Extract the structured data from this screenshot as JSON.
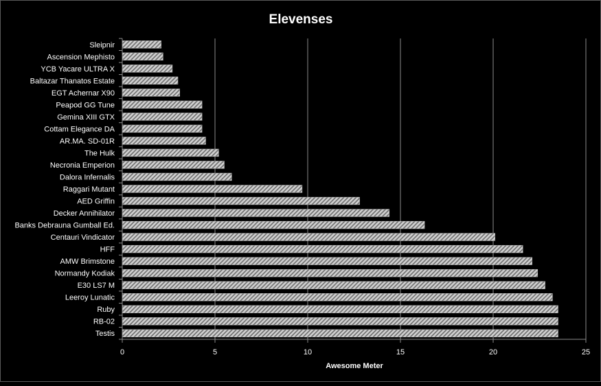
{
  "chart_data": {
    "type": "bar",
    "orientation": "horizontal",
    "title": "Elevenses",
    "xlabel": "Awesome Meter",
    "ylabel": "",
    "xlim": [
      0,
      25
    ],
    "xticks": [
      0,
      5,
      10,
      15,
      20,
      25
    ],
    "grid": true,
    "legend": "none",
    "categories": [
      "Sleipnir",
      "Ascension Mephisto",
      "YCB Yacare ULTRA X",
      "Baltazar Thanatos Estate",
      "EGT Achernar X90",
      "Peapod GG Tune",
      "Gemina XIII GTX",
      "Cottam Elegance DA",
      "AR.MA. SD-01R",
      "The Hulk",
      "Necronia Emperion",
      "Dalora Infernalis",
      "Raggari Mutant",
      "AED Griffin",
      "Decker Annihilator",
      "Banks Debrauna Gumball Ed.",
      "Centauri Vindicator",
      "HFF",
      "AMW Brimstone",
      "Normandy Kodiak",
      "E30 LS7 M",
      "Leeroy Lunatic",
      "Ruby",
      "RB-02",
      "Testis"
    ],
    "values": [
      2.1,
      2.2,
      2.7,
      3.0,
      3.1,
      4.3,
      4.3,
      4.3,
      4.5,
      5.2,
      5.5,
      5.9,
      9.7,
      12.8,
      14.4,
      16.3,
      20.1,
      21.6,
      22.1,
      22.4,
      22.8,
      23.2,
      23.5,
      23.5,
      23.5
    ]
  },
  "colors": {
    "background": "#000000",
    "text": "#ffffff",
    "gridline": "#8c8c8c",
    "axis": "#8c8c8c",
    "bar_light": "#d9d9d9",
    "bar_dark": "#6e6e6e"
  }
}
